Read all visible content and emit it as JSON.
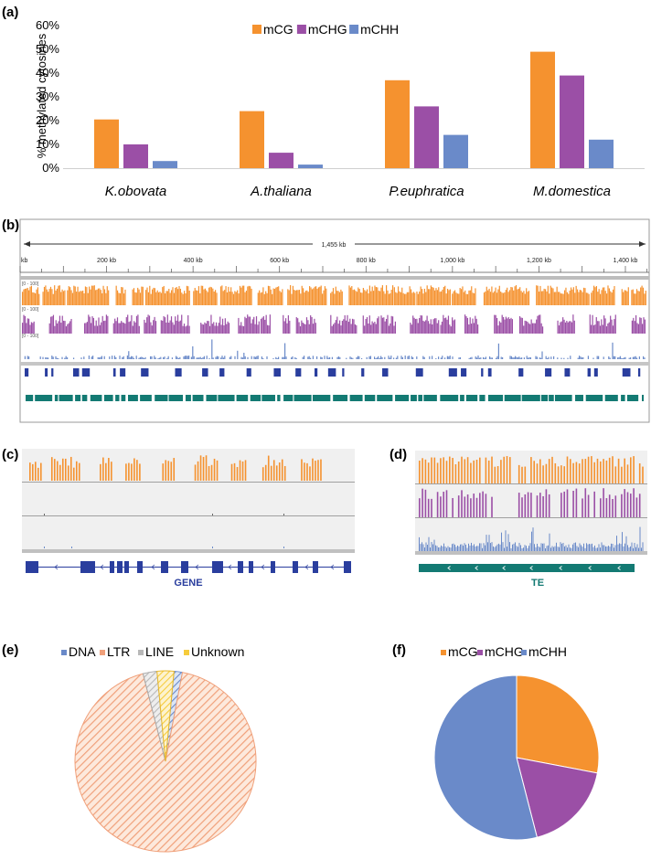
{
  "colors": {
    "mCG": "#f5922f",
    "mCHG": "#9b4fa6",
    "mCHH": "#6a8ac9",
    "gene": "#2a3e9e",
    "te": "#137a73",
    "ltr": "#f0a07a",
    "dna": "#6a8ac9",
    "line": "#b8b8b8",
    "unknown": "#f6cc3c",
    "trackbg": "#efefef"
  },
  "panels": {
    "a": "(a)",
    "b": "(b)",
    "c": "(c)",
    "d": "(d)",
    "e": "(e)",
    "f": "(f)"
  },
  "chart_data": [
    {
      "id": "a",
      "type": "bar",
      "title": "",
      "ylabel": "% methylated cytosines",
      "xlabel": "",
      "ylim": [
        0,
        60
      ],
      "yticks": [
        "0%",
        "10%",
        "20%",
        "30%",
        "40%",
        "50%",
        "60%"
      ],
      "categories": [
        "K.obovata",
        "A.thaliana",
        "P.euphratica",
        "M.domestica"
      ],
      "series": [
        {
          "name": "mCG",
          "values": [
            20.5,
            24,
            37,
            49
          ]
        },
        {
          "name": "mCHG",
          "values": [
            10,
            6.5,
            26,
            39
          ]
        },
        {
          "name": "mCHH",
          "values": [
            3,
            1.5,
            14,
            12
          ]
        }
      ],
      "legend": "top-center"
    },
    {
      "id": "e",
      "type": "pie",
      "title": "",
      "labels": [
        "DNA",
        "LTR",
        "LINE",
        "Unknown"
      ],
      "values": [
        1.5,
        93,
        2.5,
        3
      ],
      "legend": "top"
    },
    {
      "id": "f",
      "type": "pie",
      "title": "",
      "labels": [
        "mCG",
        "mCHG",
        "mCHH"
      ],
      "values": [
        28,
        18,
        54
      ],
      "legend": "top"
    }
  ],
  "browser": {
    "span_label": "1,455 kb",
    "ruler_start": "kb",
    "ruler_ticks": [
      "200 kb",
      "400 kb",
      "600 kb",
      "800 kb",
      "1,000 kb",
      "1,200 kb",
      "1,400 kb"
    ],
    "track_range": "[0 - 100]"
  },
  "zoom_c": {
    "label": "GENE"
  },
  "zoom_d": {
    "label": "TE"
  }
}
